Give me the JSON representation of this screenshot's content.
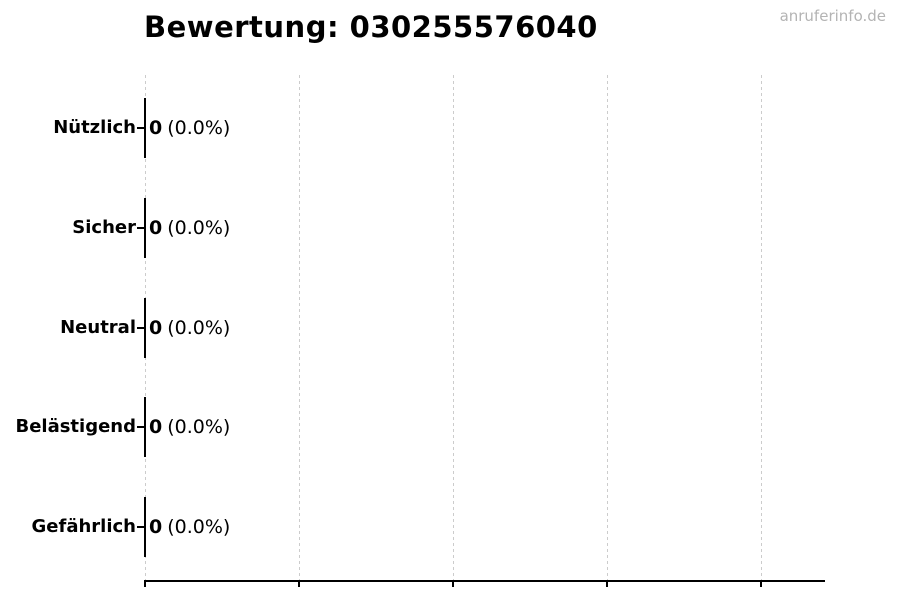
{
  "page": {
    "watermark": "anruferinfo.de"
  },
  "colors": {
    "background": "#ffffff",
    "text": "#000000",
    "bar": "#000000",
    "axis": "#000000",
    "grid": "#cccccc",
    "watermark": "#b4b4b4"
  },
  "chart_data": {
    "type": "bar",
    "orientation": "horizontal",
    "title": "Bewertung: 030255576040",
    "categories": [
      "Nützlich",
      "Sicher",
      "Neutral",
      "Belästigend",
      "Gefährlich"
    ],
    "values": [
      0,
      0,
      0,
      0,
      0
    ],
    "bar_labels": [
      {
        "count": "0",
        "percent": "(0.0%)"
      },
      {
        "count": "0",
        "percent": "(0.0%)"
      },
      {
        "count": "0",
        "percent": "(0.0%)"
      },
      {
        "count": "0",
        "percent": "(0.0%)"
      },
      {
        "count": "0",
        "percent": "(0.0%)"
      }
    ],
    "xlabel": "",
    "ylabel": "",
    "x_axis": {
      "tick_count": 5,
      "tick_labels": []
    },
    "grid": {
      "vertical": true,
      "style": "dashed"
    },
    "legend": null
  }
}
